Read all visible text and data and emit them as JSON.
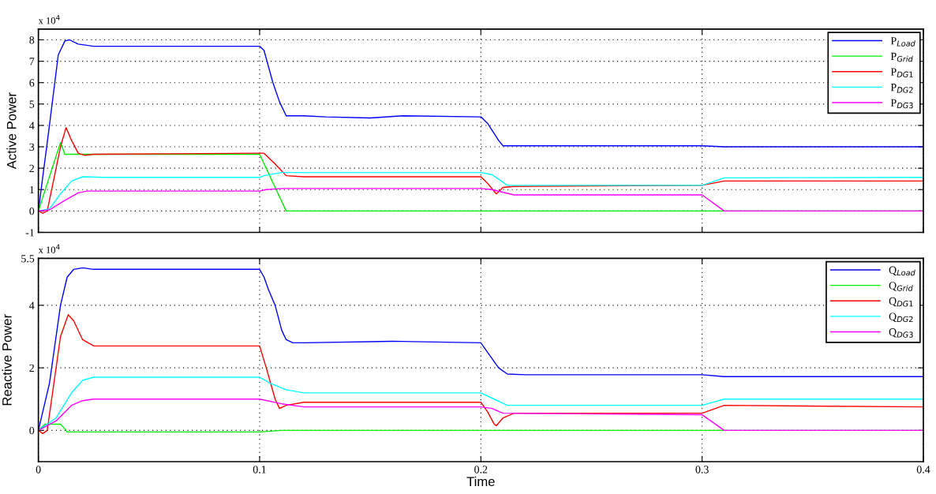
{
  "chart_data": [
    {
      "type": "line",
      "ylabel": "Active Power",
      "annotations": [
        "x 10$^{4}$"
      ],
      "xlim": [
        0,
        0.4
      ],
      "xticks": [
        0,
        0.1,
        0.2,
        0.3,
        0.4
      ],
      "ylim": [
        -1,
        8.5
      ],
      "yticks": [
        -1,
        0,
        1,
        2,
        3,
        4,
        5,
        6,
        7,
        8
      ],
      "grid": true,
      "legend": "top right",
      "tick_labels": "y",
      "line_style": "solid",
      "marker": "none",
      "series": [
        {
          "name": "P$_{Load}$",
          "color": "#0000ff",
          "x": [
            0,
            0.005,
            0.009,
            0.012,
            0.014,
            0.018,
            0.025,
            0.1,
            0.102,
            0.106,
            0.109,
            0.112,
            0.12,
            0.13,
            0.15,
            0.165,
            0.2,
            0.203,
            0.208,
            0.21,
            0.22,
            0.3,
            0.31,
            0.4
          ],
          "values": [
            0,
            4,
            7.3,
            7.95,
            8.0,
            7.8,
            7.7,
            7.7,
            7.5,
            6,
            5.1,
            4.45,
            4.45,
            4.4,
            4.35,
            4.45,
            4.4,
            4.1,
            3.3,
            3.05,
            3.05,
            3.05,
            3.0,
            3.0
          ]
        },
        {
          "name": "P$_{Grid}$",
          "color": "#00ee00",
          "x": [
            0,
            0.01,
            0.012,
            0.02,
            0.1,
            0.112,
            0.4
          ],
          "values": [
            0,
            3.2,
            2.65,
            2.65,
            2.65,
            0,
            0
          ]
        },
        {
          "name": "P$_{DG1}$",
          "color": "#ff0000",
          "x": [
            0,
            0.002,
            0.004,
            0.01,
            0.0125,
            0.015,
            0.018,
            0.021,
            0.025,
            0.1,
            0.102,
            0.107,
            0.112,
            0.12,
            0.2,
            0.203,
            0.207,
            0.21,
            0.215,
            0.3,
            0.31,
            0.4
          ],
          "values": [
            0,
            -0.1,
            0,
            3,
            3.9,
            3.3,
            2.7,
            2.6,
            2.65,
            2.7,
            2.7,
            2.2,
            1.65,
            1.6,
            1.6,
            1.3,
            0.8,
            1.1,
            1.15,
            1.2,
            1.4,
            1.4
          ]
        },
        {
          "name": "P$_{DG2}$",
          "color": "#00ffff",
          "x": [
            0,
            0.005,
            0.01,
            0.015,
            0.02,
            0.03,
            0.1,
            0.102,
            0.11,
            0.2,
            0.205,
            0.212,
            0.3,
            0.31,
            0.4
          ],
          "values": [
            0,
            0.1,
            0.8,
            1.4,
            1.6,
            1.57,
            1.57,
            1.65,
            1.8,
            1.8,
            1.7,
            1.2,
            1.2,
            1.55,
            1.57
          ]
        },
        {
          "name": "P$_{DG3}$",
          "color": "#ff00ff",
          "x": [
            0,
            0.005,
            0.012,
            0.018,
            0.022,
            0.1,
            0.103,
            0.11,
            0.2,
            0.205,
            0.215,
            0.3,
            0.31,
            0.4
          ],
          "values": [
            0,
            0.05,
            0.5,
            0.85,
            0.93,
            0.93,
            1.0,
            1.05,
            1.05,
            1.0,
            0.75,
            0.75,
            0,
            0
          ]
        }
      ]
    },
    {
      "type": "line",
      "xlabel": "Time",
      "ylabel": "Reactive Power",
      "annotations": [
        "x 10$^{4}$"
      ],
      "xlim": [
        0,
        0.4
      ],
      "xticks": [
        0,
        0.1,
        0.2,
        0.3,
        0.4
      ],
      "ylim": [
        -1,
        5.5
      ],
      "yticks": [
        0,
        2,
        4,
        5.5
      ],
      "grid": true,
      "legend": "top right",
      "line_style": "solid",
      "marker": "none",
      "series": [
        {
          "name": "Q$_{Load}$",
          "color": "#0000ff",
          "x": [
            0,
            0.005,
            0.01,
            0.013,
            0.016,
            0.02,
            0.025,
            0.1,
            0.102,
            0.104,
            0.107,
            0.11,
            0.112,
            0.115,
            0.12,
            0.16,
            0.2,
            0.203,
            0.208,
            0.212,
            0.22,
            0.3,
            0.31,
            0.4
          ],
          "values": [
            0,
            1.5,
            4,
            4.9,
            5.15,
            5.2,
            5.15,
            5.15,
            4.9,
            4.5,
            4,
            3.2,
            2.9,
            2.8,
            2.8,
            2.85,
            2.8,
            2.5,
            2.0,
            1.8,
            1.78,
            1.78,
            1.72,
            1.72
          ]
        },
        {
          "name": "Q$_{Grid}$",
          "color": "#00ee00",
          "x": [
            0,
            0.003,
            0.01,
            0.012,
            0.013,
            0.1,
            0.11,
            0.4
          ],
          "values": [
            0,
            0.2,
            0.2,
            0.05,
            -0.05,
            -0.05,
            0,
            0
          ]
        },
        {
          "name": "Q$_{DG1}$",
          "color": "#ff0000",
          "x": [
            0,
            0.002,
            0.004,
            0.01,
            0.0135,
            0.016,
            0.02,
            0.025,
            0.1,
            0.103,
            0.107,
            0.109,
            0.112,
            0.12,
            0.2,
            0.203,
            0.206,
            0.207,
            0.21,
            0.215,
            0.3,
            0.31,
            0.4
          ],
          "values": [
            0,
            -0.1,
            0,
            3,
            3.7,
            3.5,
            2.9,
            2.7,
            2.7,
            2.0,
            1.0,
            0.7,
            0.8,
            0.9,
            0.9,
            0.6,
            0.2,
            0.15,
            0.4,
            0.55,
            0.55,
            0.8,
            0.75
          ]
        },
        {
          "name": "Q$_{DG2}$",
          "color": "#00ffff",
          "x": [
            0,
            0.008,
            0.015,
            0.02,
            0.025,
            0.1,
            0.105,
            0.112,
            0.12,
            0.2,
            0.206,
            0.212,
            0.3,
            0.31,
            0.4
          ],
          "values": [
            0,
            0.4,
            1.2,
            1.6,
            1.7,
            1.7,
            1.5,
            1.3,
            1.2,
            1.2,
            1.0,
            0.8,
            0.8,
            1.0,
            1.0
          ]
        },
        {
          "name": "Q$_{DG3}$",
          "color": "#ff00ff",
          "x": [
            0,
            0.008,
            0.015,
            0.02,
            0.025,
            0.1,
            0.11,
            0.12,
            0.2,
            0.205,
            0.21,
            0.3,
            0.31,
            0.4
          ],
          "values": [
            0,
            0.3,
            0.8,
            0.95,
            1.0,
            1.0,
            0.85,
            0.75,
            0.75,
            0.7,
            0.55,
            0.5,
            0,
            0
          ]
        }
      ]
    }
  ]
}
